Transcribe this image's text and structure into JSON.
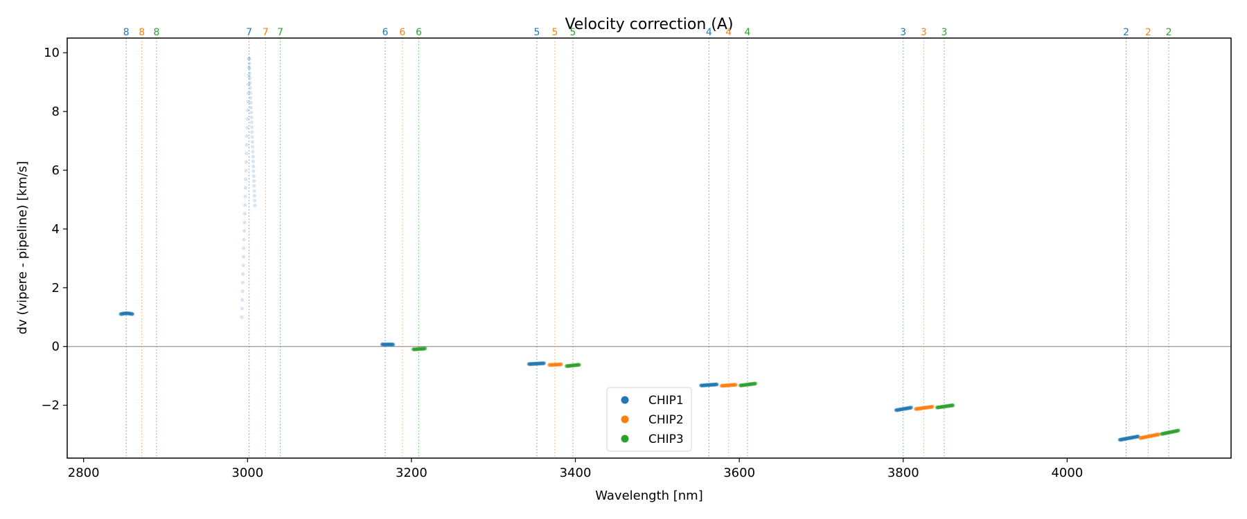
{
  "chart_data": {
    "type": "scatter",
    "title": "Velocity correction (A)",
    "xlabel": "Wavelength [nm]",
    "ylabel": "dv (vipere - pipeline) [km/s]",
    "xlim": [
      2780,
      4200
    ],
    "ylim": [
      -3.8,
      10.5
    ],
    "xticks": [
      2800,
      3000,
      3200,
      3400,
      3600,
      3800,
      4000
    ],
    "yticks": [
      -2,
      0,
      2,
      4,
      6,
      8,
      10
    ],
    "grid": false,
    "zero_line": true,
    "legend_position": "lower-center",
    "colors": {
      "CHIP1": "#1f77b4",
      "CHIP2": "#ff7f0e",
      "CHIP3": "#2ca02c"
    },
    "order_markers": [
      {
        "order": "8",
        "chip": "CHIP1",
        "x": 2852
      },
      {
        "order": "8",
        "chip": "CHIP2",
        "x": 2871
      },
      {
        "order": "8",
        "chip": "CHIP3",
        "x": 2889
      },
      {
        "order": "7",
        "chip": "CHIP1",
        "x": 3002
      },
      {
        "order": "7",
        "chip": "CHIP2",
        "x": 3022
      },
      {
        "order": "7",
        "chip": "CHIP3",
        "x": 3040
      },
      {
        "order": "6",
        "chip": "CHIP1",
        "x": 3168
      },
      {
        "order": "6",
        "chip": "CHIP2",
        "x": 3189
      },
      {
        "order": "6",
        "chip": "CHIP3",
        "x": 3209
      },
      {
        "order": "5",
        "chip": "CHIP1",
        "x": 3353
      },
      {
        "order": "5",
        "chip": "CHIP2",
        "x": 3375
      },
      {
        "order": "5",
        "chip": "CHIP3",
        "x": 3397
      },
      {
        "order": "4",
        "chip": "CHIP1",
        "x": 3563
      },
      {
        "order": "4",
        "chip": "CHIP2",
        "x": 3587
      },
      {
        "order": "4",
        "chip": "CHIP3",
        "x": 3610
      },
      {
        "order": "3",
        "chip": "CHIP1",
        "x": 3800
      },
      {
        "order": "3",
        "chip": "CHIP2",
        "x": 3825
      },
      {
        "order": "3",
        "chip": "CHIP3",
        "x": 3850
      },
      {
        "order": "2",
        "chip": "CHIP1",
        "x": 4072
      },
      {
        "order": "2",
        "chip": "CHIP2",
        "x": 4099
      },
      {
        "order": "2",
        "chip": "CHIP3",
        "x": 4124
      }
    ],
    "series": [
      {
        "name": "CHIP1",
        "segments": [
          {
            "x0": 2845,
            "x1": 2860,
            "y0": 1.1,
            "y1": 1.1,
            "y_mid": 1.13
          },
          {
            "x0": 3164,
            "x1": 3178,
            "y0": 0.07,
            "y1": 0.07
          },
          {
            "x0": 3343,
            "x1": 3362,
            "y0": -0.6,
            "y1": -0.57
          },
          {
            "x0": 3553,
            "x1": 3573,
            "y0": -1.33,
            "y1": -1.29
          },
          {
            "x0": 3791,
            "x1": 3810,
            "y0": -2.17,
            "y1": -2.08
          },
          {
            "x0": 4064,
            "x1": 4087,
            "y0": -3.18,
            "y1": -3.06
          }
        ],
        "outlier_columns": [
          {
            "x0": 2993,
            "x1": 3002,
            "y0": 1.0,
            "y1": 9.8
          },
          {
            "x0": 3002,
            "x1": 3009,
            "y0": 9.8,
            "y1": 4.8
          }
        ]
      },
      {
        "name": "CHIP2",
        "segments": [
          {
            "x0": 3368,
            "x1": 3383,
            "y0": -0.63,
            "y1": -0.61
          },
          {
            "x0": 3578,
            "x1": 3596,
            "y0": -1.34,
            "y1": -1.3
          },
          {
            "x0": 3815,
            "x1": 3836,
            "y0": -2.13,
            "y1": -2.05
          },
          {
            "x0": 4089,
            "x1": 4112,
            "y0": -3.12,
            "y1": -2.99
          }
        ]
      },
      {
        "name": "CHIP3",
        "segments": [
          {
            "x0": 3202,
            "x1": 3217,
            "y0": -0.1,
            "y1": -0.07
          },
          {
            "x0": 3389,
            "x1": 3405,
            "y0": -0.67,
            "y1": -0.62
          },
          {
            "x0": 3601,
            "x1": 3620,
            "y0": -1.33,
            "y1": -1.26
          },
          {
            "x0": 3841,
            "x1": 3861,
            "y0": -2.08,
            "y1": -2.0
          },
          {
            "x0": 4115,
            "x1": 4136,
            "y0": -2.98,
            "y1": -2.86
          }
        ]
      }
    ],
    "legend": [
      "CHIP1",
      "CHIP2",
      "CHIP3"
    ]
  }
}
